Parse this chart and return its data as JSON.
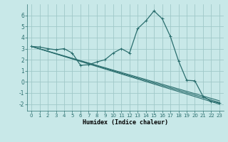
{
  "xlabel": "Humidex (Indice chaleur)",
  "background_color": "#c8e8e8",
  "grid_color": "#a0c8c8",
  "line_color": "#2a6e6e",
  "xlim": [
    -0.5,
    23.5
  ],
  "ylim": [
    -2.6,
    7.0
  ],
  "yticks": [
    -2,
    -1,
    0,
    1,
    2,
    3,
    4,
    5,
    6
  ],
  "xticks": [
    0,
    1,
    2,
    3,
    4,
    5,
    6,
    7,
    8,
    9,
    10,
    11,
    12,
    13,
    14,
    15,
    16,
    17,
    18,
    19,
    20,
    21,
    22,
    23
  ],
  "lines": [
    {
      "x": [
        0,
        1,
        2,
        3,
        4,
        5,
        6,
        7,
        8,
        9,
        10,
        11,
        12,
        13,
        14,
        15,
        16,
        17,
        18,
        19,
        20,
        21,
        22,
        23
      ],
      "y": [
        3.2,
        3.15,
        3.0,
        2.9,
        3.0,
        2.6,
        1.5,
        1.55,
        1.8,
        2.0,
        2.6,
        3.0,
        2.6,
        4.8,
        5.5,
        6.4,
        5.7,
        4.1,
        1.9,
        0.15,
        0.1,
        -1.3,
        -1.75,
        -1.9
      ],
      "has_markers": true
    },
    {
      "x": [
        0,
        23
      ],
      "y": [
        3.2,
        -2.0
      ],
      "has_markers": false
    },
    {
      "x": [
        0,
        23
      ],
      "y": [
        3.2,
        -1.85
      ],
      "has_markers": false
    },
    {
      "x": [
        0,
        23
      ],
      "y": [
        3.2,
        -1.7
      ],
      "has_markers": false
    }
  ]
}
